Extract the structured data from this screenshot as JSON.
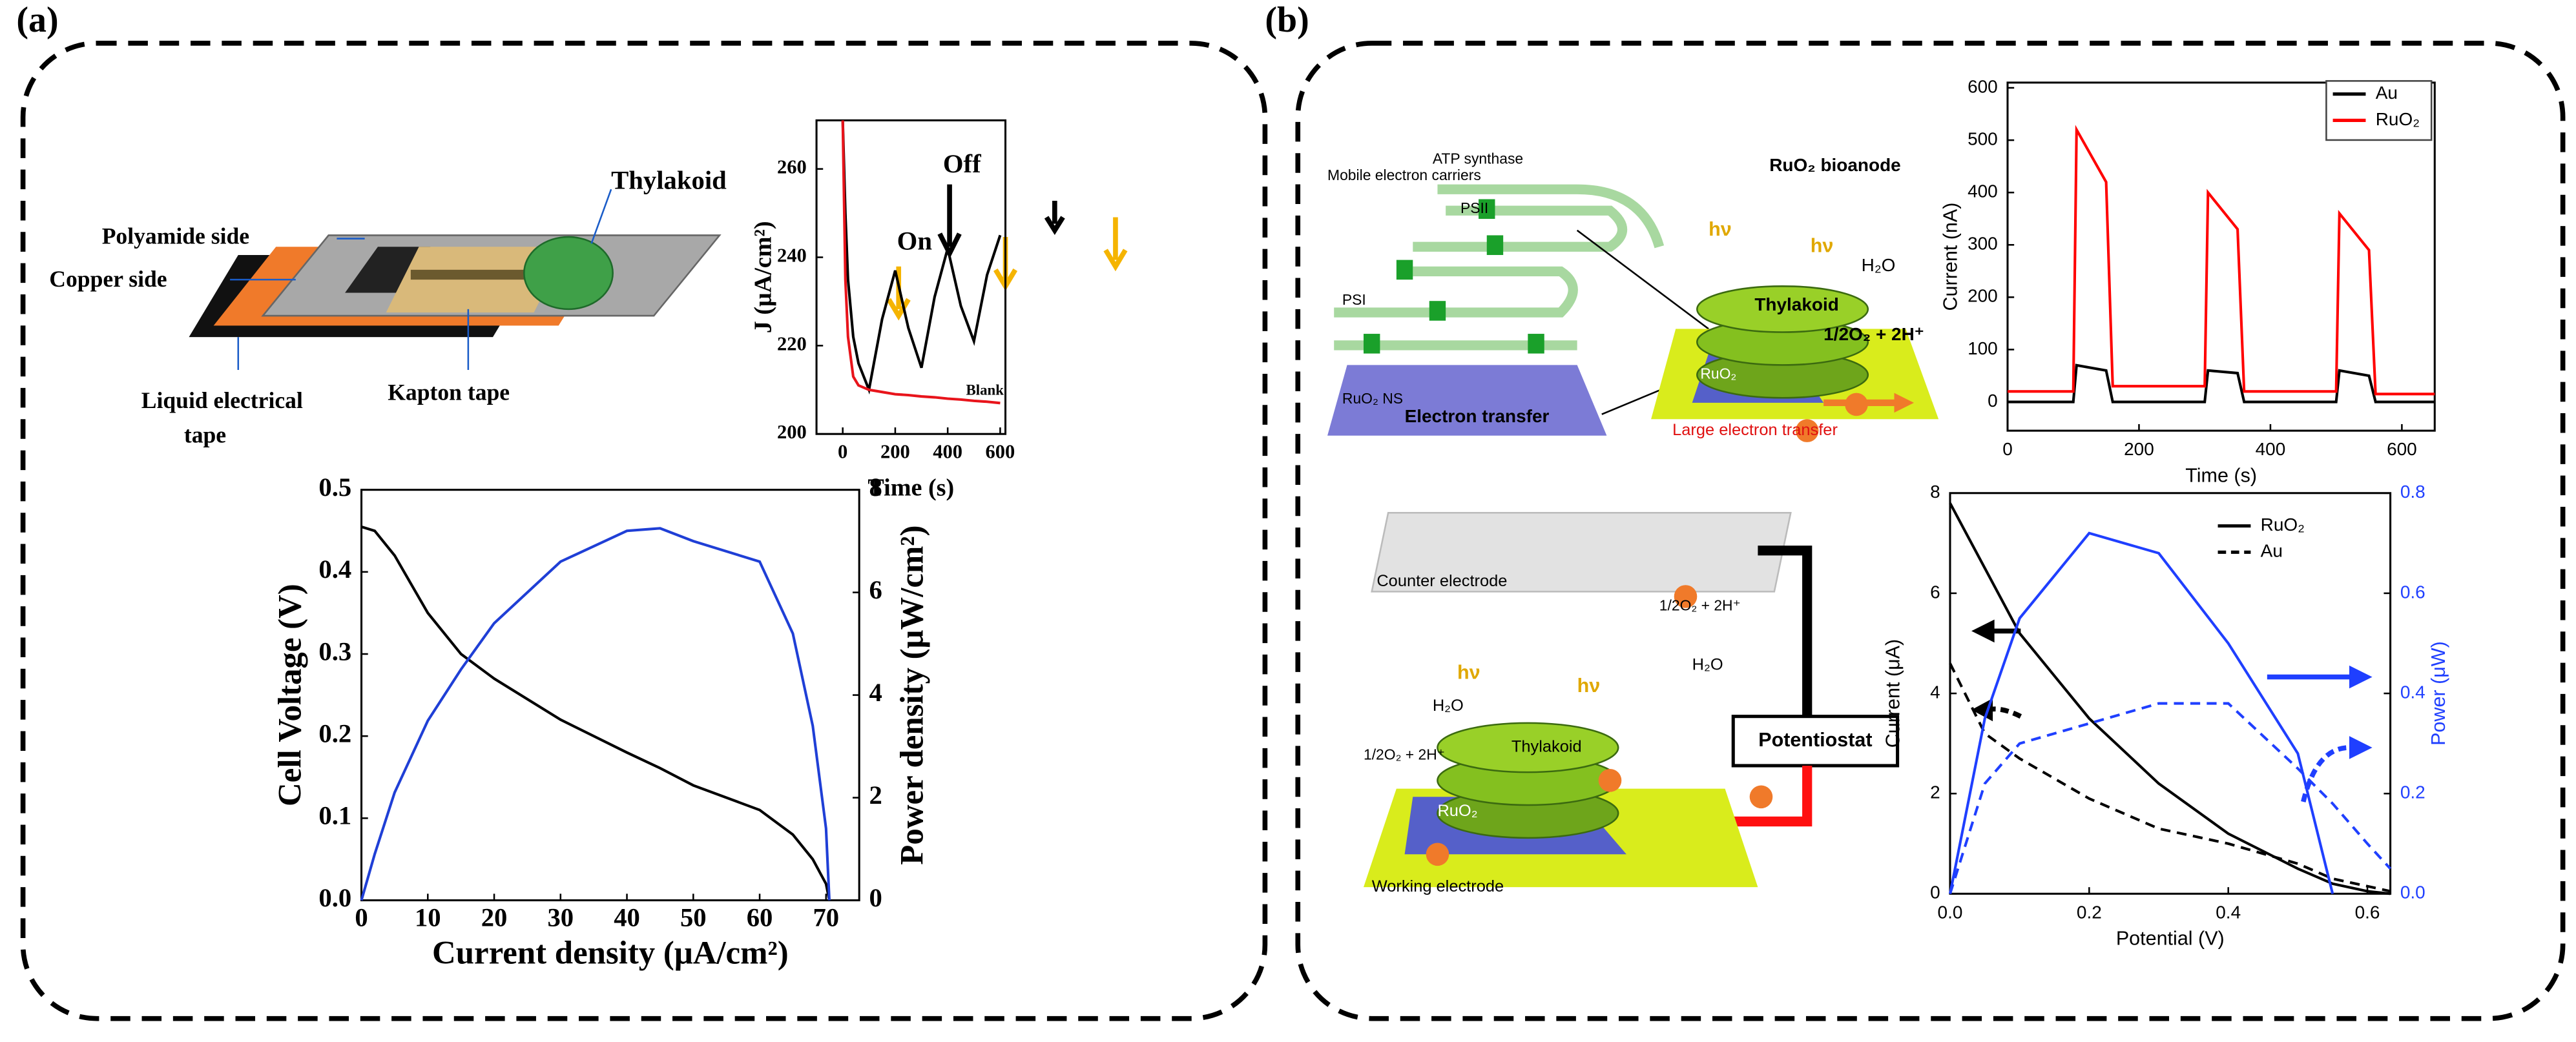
{
  "panel_labels": [
    "(a)",
    "(b)"
  ],
  "device_diagram": {
    "labels": [
      "Thylakoid",
      "Polyamide side",
      "Copper side",
      "Liquid electrical",
      "tape",
      "Kapton tape"
    ]
  },
  "mechanism_diagram": {
    "labels": [
      "Mobile electron carriers",
      "ATP synthase",
      "PSII",
      "PSI",
      "RuO₂ NS",
      "Electron transfer",
      "RuO₂ bioanode",
      "hν",
      "hν",
      "H₂O",
      "Thylakoid",
      "1/2O₂ + 2H⁺",
      "RuO₂",
      "Large electron transfer"
    ]
  },
  "cell_diagram": {
    "labels": [
      "Counter electrode",
      "1/2O₂ + 2H⁺",
      "H₂O",
      "Potentiostat",
      "hν",
      "hν",
      "H₂O",
      "1/2O₂ + 2H⁺",
      "Thylakoid",
      "RuO₂",
      "Working electrode"
    ]
  },
  "chart_data": [
    {
      "type": "line",
      "xlabel": "Time (s)",
      "ylabel": "J (μA/cm²)",
      "annotations": [
        "On",
        "Off",
        "Blank"
      ],
      "x": [
        0,
        10,
        20,
        40,
        60,
        100,
        150,
        200,
        250,
        300,
        350,
        400,
        450,
        500,
        550,
        600
      ],
      "xlim": [
        -100,
        620
      ],
      "xticks": [
        0,
        200,
        400,
        600
      ],
      "ylim": [
        200,
        271
      ],
      "yticks": [
        200,
        220,
        240,
        260
      ],
      "series": [
        {
          "color": "#000000",
          "values": [
            271,
            250,
            235,
            222,
            216,
            210,
            226,
            237,
            224,
            215,
            231,
            242,
            229,
            221,
            236,
            245
          ]
        },
        {
          "color": "#e8141b",
          "values": [
            271,
            235,
            222,
            213,
            211,
            210,
            209.5,
            209,
            208.8,
            208.5,
            208.3,
            208,
            207.8,
            207.5,
            207.3,
            207
          ]
        }
      ]
    },
    {
      "type": "line",
      "xlabel": "Current density (μA/cm²)",
      "ylabel": "Cell Voltage (V)",
      "y2label": "Power density (μW/cm²)",
      "x": [
        0,
        2,
        5,
        10,
        15,
        20,
        30,
        40,
        45,
        50,
        60,
        65,
        68,
        70,
        70.5
      ],
      "xlim": [
        0,
        75
      ],
      "xticks": [
        0,
        10,
        20,
        30,
        40,
        50,
        60,
        70
      ],
      "ylim": [
        0,
        0.5
      ],
      "yticks": [
        {
          "value": 0,
          "label": "0.0"
        },
        0.1,
        0.2,
        0.3,
        0.4,
        0.5
      ],
      "y2lim": [
        0,
        8
      ],
      "y2ticks": [
        0,
        2,
        4,
        6,
        8
      ],
      "series": [
        {
          "color": "#000000",
          "values": [
            0.455,
            0.45,
            0.42,
            0.35,
            0.3,
            0.27,
            0.22,
            0.18,
            0.161,
            0.14,
            0.11,
            0.08,
            0.05,
            0.02,
            0
          ]
        },
        {
          "color": "#1f3fd6",
          "axis": "y2",
          "values": [
            0,
            0.9,
            2.1,
            3.5,
            4.5,
            5.4,
            6.6,
            7.2,
            7.25,
            7,
            6.6,
            5.2,
            3.4,
            1.4,
            0
          ]
        }
      ]
    },
    {
      "type": "line",
      "xlabel": "Time (s)",
      "ylabel": "Current (nA)",
      "legend": "top-right",
      "x": [
        0,
        100,
        105,
        150,
        160,
        300,
        305,
        350,
        360,
        500,
        505,
        550,
        560,
        650
      ],
      "xlim": [
        0,
        650
      ],
      "xticks": [
        0,
        200,
        400,
        600
      ],
      "ylim": [
        -55,
        610
      ],
      "yticks": [
        0,
        100,
        200,
        300,
        400,
        500,
        600
      ],
      "series": [
        {
          "name": "Au",
          "color": "#000000",
          "values": [
            0,
            0,
            70,
            60,
            0,
            0,
            60,
            55,
            0,
            0,
            60,
            50,
            0,
            0
          ]
        },
        {
          "name": "RuO₂",
          "color": "#ff0000",
          "values": [
            20,
            20,
            520,
            420,
            30,
            30,
            400,
            330,
            20,
            20,
            360,
            290,
            15,
            15
          ]
        }
      ]
    },
    {
      "type": "line",
      "xlabel": "Potential (V)",
      "ylabel": "Current (μA)",
      "y2label": "Power (μW)",
      "legend": "top-right",
      "x": [
        0,
        0.05,
        0.1,
        0.2,
        0.3,
        0.4,
        0.5,
        0.55,
        0.6,
        0.633
      ],
      "xlim": [
        0,
        0.633
      ],
      "xticks": [
        {
          "value": 0,
          "label": "0.0"
        },
        0.2,
        0.4,
        0.6
      ],
      "ylim": [
        0,
        8
      ],
      "yticks": [
        0,
        2,
        4,
        6,
        8
      ],
      "y2lim": [
        0,
        0.8
      ],
      "y2ticks": [
        {
          "value": 0,
          "label": "0.0"
        },
        0.2,
        0.4,
        0.6,
        0.8
      ],
      "series": [
        {
          "name": "RuO₂",
          "color": "#000000",
          "style": "solid",
          "values": [
            7.8,
            6.5,
            5.2,
            3.5,
            2.2,
            1.2,
            0.5,
            0.2,
            0.05,
            0
          ]
        },
        {
          "name": "Au",
          "color": "#000000",
          "style": "dashed",
          "values": [
            4.6,
            3.2,
            2.7,
            1.9,
            1.3,
            1,
            0.6,
            0.3,
            0.15,
            0.05
          ]
        },
        {
          "color": "#1f3fff",
          "style": "solid",
          "axis": "y2",
          "values": [
            0,
            0.35,
            0.55,
            0.72,
            0.68,
            0.5,
            0.28,
            0,
            null,
            null
          ]
        },
        {
          "color": "#1f3fff",
          "style": "dashed",
          "axis": "y2",
          "values": [
            0,
            0.22,
            0.3,
            0.34,
            0.38,
            0.38,
            0.25,
            0.18,
            0.1,
            0.05
          ]
        }
      ]
    }
  ]
}
